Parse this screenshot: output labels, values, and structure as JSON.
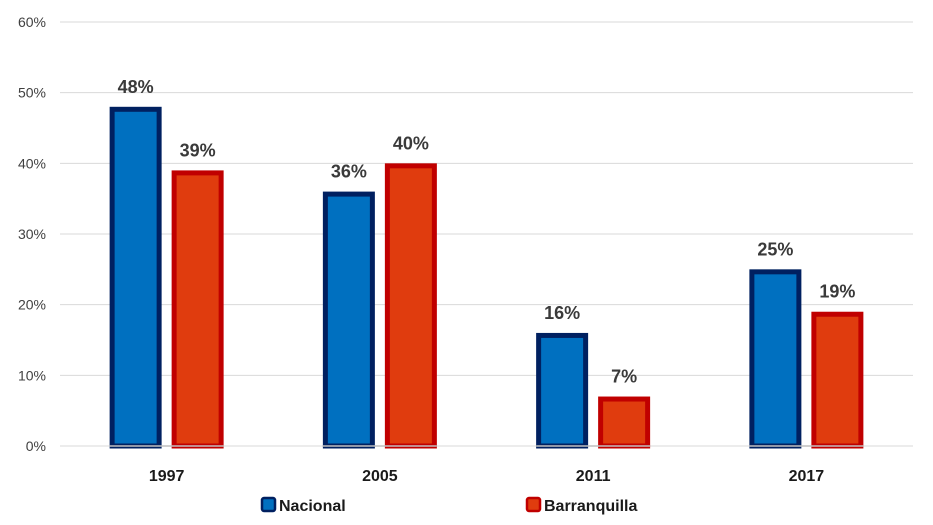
{
  "chart_data": {
    "type": "bar",
    "categories": [
      "1997",
      "2005",
      "2011",
      "2017"
    ],
    "series": [
      {
        "name": "Nacional",
        "values": [
          48,
          36,
          16,
          25
        ],
        "labels": [
          "48%",
          "36%",
          "16%",
          "25%"
        ],
        "fill": "#0070C0",
        "stroke": "#002060"
      },
      {
        "name": "Barranquilla",
        "values": [
          39,
          40,
          7,
          19
        ],
        "labels": [
          "39%",
          "40%",
          "7%",
          "19%"
        ],
        "fill": "#E03C0E",
        "stroke": "#C00000"
      }
    ],
    "yticks": [
      "0%",
      "10%",
      "20%",
      "30%",
      "40%",
      "50%",
      "60%"
    ],
    "ylim": [
      0,
      60
    ],
    "grid": true,
    "legend_position": "bottom",
    "title": "",
    "xlabel": "",
    "ylabel": ""
  }
}
